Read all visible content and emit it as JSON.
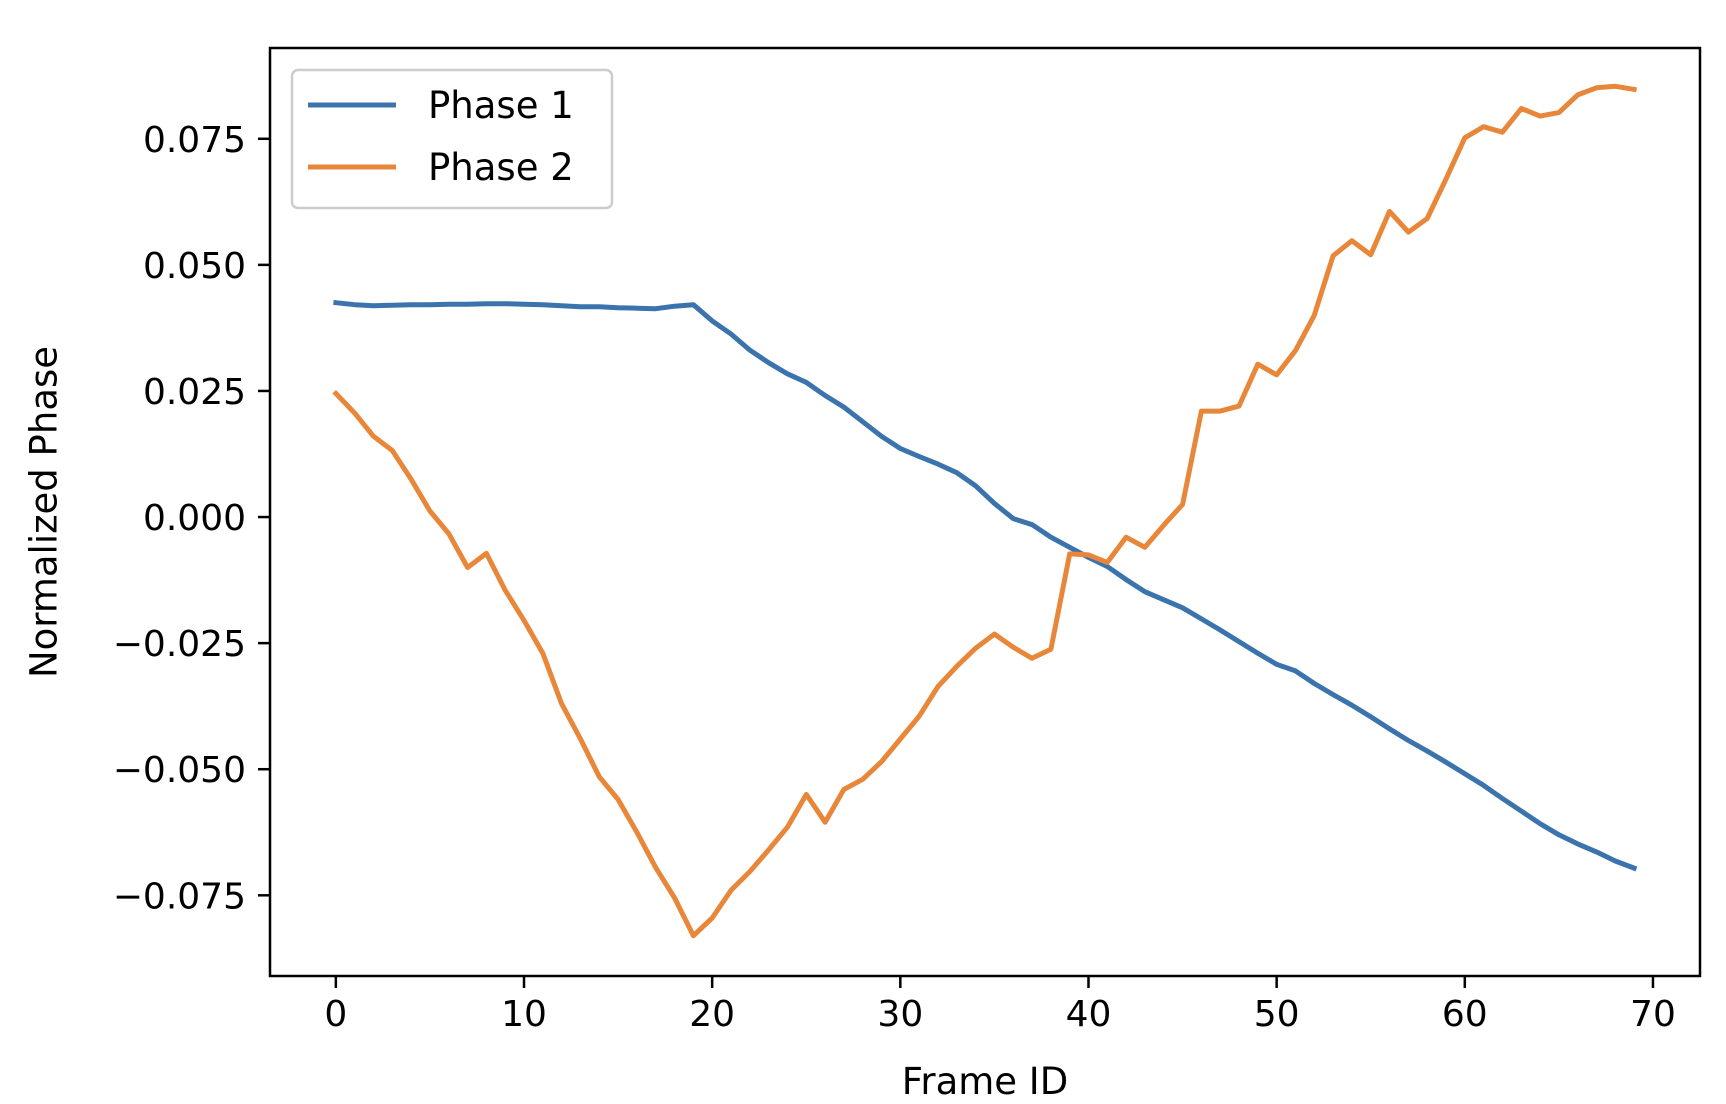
{
  "chart_data": {
    "type": "line",
    "title": "",
    "xlabel": "Frame ID",
    "ylabel": "Normalized Phase",
    "xlim": [
      -3.5,
      72.5
    ],
    "ylim": [
      -0.091,
      0.093
    ],
    "xticks": [
      0,
      10,
      20,
      30,
      40,
      50,
      60,
      70
    ],
    "xtick_labels": [
      "0",
      "10",
      "20",
      "30",
      "40",
      "50",
      "60",
      "70"
    ],
    "yticks": [
      0.075,
      0.05,
      0.025,
      0.0,
      -0.025,
      -0.05,
      -0.075
    ],
    "ytick_labels": [
      "0.075",
      "0.050",
      "0.025",
      "0.000",
      "−0.025",
      "−0.050",
      "−0.075"
    ],
    "grid": false,
    "legend_position": "top-left",
    "x": [
      0,
      1,
      2,
      3,
      4,
      5,
      6,
      7,
      8,
      9,
      10,
      11,
      12,
      13,
      14,
      15,
      16,
      17,
      18,
      19,
      20,
      21,
      22,
      23,
      24,
      25,
      26,
      27,
      28,
      29,
      30,
      31,
      32,
      33,
      34,
      35,
      36,
      37,
      38,
      39,
      40,
      41,
      42,
      43,
      44,
      45,
      46,
      47,
      48,
      49,
      50,
      51,
      52,
      53,
      54,
      55,
      56,
      57,
      58,
      59,
      60,
      61,
      62,
      63,
      64,
      65,
      66,
      67,
      68,
      69
    ],
    "series": [
      {
        "name": "Phase 1",
        "color": "#3b73ad",
        "values": [
          0.0425,
          0.0421,
          0.0419,
          0.042,
          0.0421,
          0.0421,
          0.0422,
          0.0422,
          0.0423,
          0.0423,
          0.0422,
          0.0421,
          0.0419,
          0.0417,
          0.0417,
          0.0415,
          0.0414,
          0.0413,
          0.0418,
          0.0421,
          0.0389,
          0.0363,
          0.0331,
          0.0306,
          0.0284,
          0.0267,
          0.0241,
          0.0218,
          0.0189,
          0.016,
          0.0136,
          0.012,
          0.0105,
          0.0088,
          0.0062,
          0.0027,
          -0.0003,
          -0.0015,
          -0.004,
          -0.006,
          -0.008,
          -0.0098,
          -0.0124,
          -0.0148,
          -0.0164,
          -0.018,
          -0.0202,
          -0.0224,
          -0.0247,
          -0.027,
          -0.0292,
          -0.0305,
          -0.033,
          -0.0352,
          -0.0373,
          -0.0396,
          -0.042,
          -0.0443,
          -0.0464,
          -0.0486,
          -0.0509,
          -0.0532,
          -0.0558,
          -0.0583,
          -0.0608,
          -0.063,
          -0.0648,
          -0.0664,
          -0.0682,
          -0.0696
        ]
      },
      {
        "name": "Phase 2",
        "color": "#e8873a",
        "values": [
          0.0245,
          0.0206,
          0.016,
          0.0132,
          0.0075,
          0.0012,
          -0.0033,
          -0.01,
          -0.0072,
          -0.0145,
          -0.0205,
          -0.027,
          -0.037,
          -0.044,
          -0.0515,
          -0.056,
          -0.0625,
          -0.0695,
          -0.0755,
          -0.083,
          -0.0795,
          -0.074,
          -0.0703,
          -0.066,
          -0.0615,
          -0.055,
          -0.0605,
          -0.054,
          -0.052,
          -0.0485,
          -0.044,
          -0.0395,
          -0.0336,
          -0.0296,
          -0.026,
          -0.0232,
          -0.0258,
          -0.028,
          -0.0262,
          -0.0073,
          -0.0075,
          -0.009,
          -0.004,
          -0.006,
          -0.0016,
          0.0025,
          0.021,
          0.021,
          0.022,
          0.0303,
          0.0282,
          0.033,
          0.04,
          0.0518,
          0.0548,
          0.052,
          0.0606,
          0.0565,
          0.0592,
          0.067,
          0.0752,
          0.0774,
          0.0763,
          0.081,
          0.0795,
          0.0802,
          0.0837,
          0.0851,
          0.0854,
          0.0848
        ]
      }
    ]
  }
}
